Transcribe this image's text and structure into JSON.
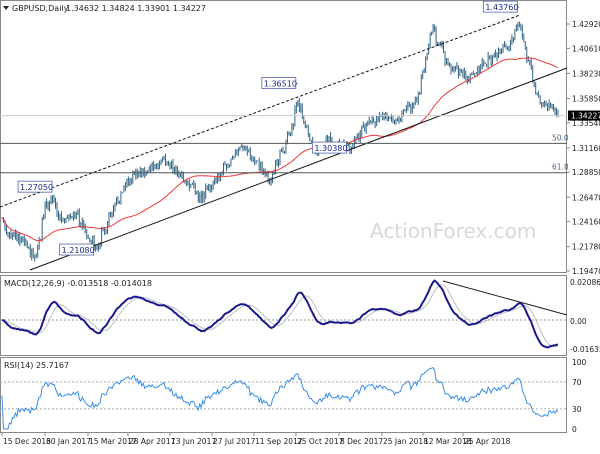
{
  "header": {
    "symbol_label": "GBPUSD,Daily",
    "ohlc": "1.34632 1.34824 1.33901 1.34227"
  },
  "watermark": "ActionForex.com",
  "chart_data": [
    {
      "type": "ohlc",
      "title": "GBPUSD,Daily 1.34632 1.34824 1.33901 1.34227",
      "ylim": [
        1.1947,
        1.4292
      ],
      "y_ticks": [
        "1.42920",
        "1.40610",
        "1.38230",
        "1.35850",
        "1.33540",
        "1.31160",
        "1.28850",
        "1.26470",
        "1.24160",
        "1.21780",
        "1.19470"
      ],
      "current_price": "1.34227",
      "x_ticks": [
        "15 Dec 2016",
        "30 Jan 2017",
        "15 Mar 2017",
        "28 Apr 2017",
        "13 Jun 2017",
        "27 Jul 2017",
        "11 Sep 2017",
        "25 Oct 2017",
        "8 Dec 2017",
        "25 Jan 2018",
        "12 Mar 2018",
        "25 Apr 2018"
      ],
      "close_keypoints": [
        [
          "2016-12-15",
          1.245
        ],
        [
          "2016-12-22",
          1.23
        ],
        [
          "2017-01-03",
          1.222
        ],
        [
          "2017-01-16",
          1.205
        ],
        [
          "2017-01-26",
          1.258
        ],
        [
          "2017-02-02",
          1.262
        ],
        [
          "2017-02-07",
          1.245
        ],
        [
          "2017-02-22",
          1.25
        ],
        [
          "2017-03-14",
          1.216
        ],
        [
          "2017-03-31",
          1.255
        ],
        [
          "2017-04-18",
          1.285
        ],
        [
          "2017-05-10",
          1.295
        ],
        [
          "2017-05-18",
          1.3
        ],
        [
          "2017-06-01",
          1.287
        ],
        [
          "2017-06-21",
          1.265
        ],
        [
          "2017-07-10",
          1.288
        ],
        [
          "2017-07-27",
          1.312
        ],
        [
          "2017-08-10",
          1.3
        ],
        [
          "2017-08-24",
          1.282
        ],
        [
          "2017-09-11",
          1.32
        ],
        [
          "2017-09-20",
          1.355
        ],
        [
          "2017-10-06",
          1.306
        ],
        [
          "2017-10-20",
          1.32
        ],
        [
          "2017-11-07",
          1.31
        ],
        [
          "2017-11-24",
          1.333
        ],
        [
          "2017-12-08",
          1.34
        ],
        [
          "2017-12-20",
          1.338
        ],
        [
          "2018-01-10",
          1.355
        ],
        [
          "2018-01-25",
          1.425
        ],
        [
          "2018-02-09",
          1.39
        ],
        [
          "2018-03-01",
          1.378
        ],
        [
          "2018-03-12",
          1.39
        ],
        [
          "2018-04-03",
          1.405
        ],
        [
          "2018-04-17",
          1.428
        ],
        [
          "2018-04-25",
          1.395
        ],
        [
          "2018-05-04",
          1.355
        ],
        [
          "2018-05-17",
          1.352
        ],
        [
          "2018-05-23",
          1.34227
        ]
      ],
      "annotations": [
        {
          "text": "1.27050",
          "date": "2017-02-02",
          "price": 1.2705
        },
        {
          "text": "1.21080",
          "date": "2017-03-14",
          "price": 1.2108
        },
        {
          "text": "1.36510",
          "date": "2017-09-20",
          "price": 1.3651
        },
        {
          "text": "1.30380",
          "date": "2017-11-07",
          "price": 1.3038
        },
        {
          "text": "1.43760",
          "date": "2018-04-17",
          "price": 1.4376
        }
      ],
      "fib_levels": [
        {
          "label": "50.0",
          "price": 1.3159
        },
        {
          "label": "61.8",
          "price": 1.288
        }
      ],
      "moving_average_color": "#e8383a",
      "bar_color": "#2f6382"
    },
    {
      "type": "line",
      "label": "MACD(12,26,9) -0.013518 -0.014018",
      "y_ticks": [
        "0.020861",
        "0.00",
        "-0.016357"
      ],
      "ylim": [
        -0.016357,
        0.020861
      ],
      "series": [
        {
          "color": "#1a1a8c"
        },
        {
          "color": "#c0c0c0"
        }
      ]
    },
    {
      "type": "line",
      "label": "RSI(14) 25.7167",
      "y_ticks": [
        "100",
        "70",
        "30",
        "0"
      ],
      "ylim": [
        0,
        100
      ],
      "levels": [
        70,
        30
      ],
      "series": [
        {
          "color": "#3a8ee6"
        }
      ]
    }
  ]
}
